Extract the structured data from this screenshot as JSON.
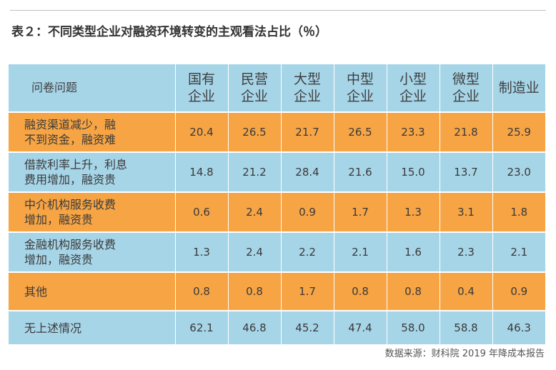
{
  "title": "表２：不同类型企业对融资环境转变的主观看法占比（％）",
  "header": {
    "question_label": "问卷问题",
    "columns": [
      "国有\n企业",
      "民营\n企业",
      "大型\n企业",
      "中型\n企业",
      "小型\n企业",
      "微型\n企业",
      "制造业"
    ]
  },
  "rows": [
    {
      "label": "融资渠道减少，融\n不到资金，融资难",
      "values": [
        "20.4",
        "26.5",
        "21.7",
        "26.5",
        "23.3",
        "21.8",
        "25.9"
      ],
      "color": "#f6a444"
    },
    {
      "label": "借款利率上升，利息\n费用增加，融资贵",
      "values": [
        "14.8",
        "21.2",
        "28.4",
        "21.6",
        "15.0",
        "13.7",
        "23.0"
      ],
      "color": "#a7d5e8"
    },
    {
      "label": "中介机构服务收费\n增加，融资贵",
      "values": [
        "0.6",
        "2.4",
        "0.9",
        "1.7",
        "1.3",
        "3.1",
        "1.8"
      ],
      "color": "#f6a444"
    },
    {
      "label": "金融机构服务收费\n增加，融资贵",
      "values": [
        "1.3",
        "2.4",
        "2.2",
        "2.1",
        "1.6",
        "2.3",
        "2.1"
      ],
      "color": "#a7d5e8"
    },
    {
      "label": "其他",
      "values": [
        "0.8",
        "0.8",
        "1.7",
        "0.8",
        "0.8",
        "0.4",
        "0.9"
      ],
      "color": "#f6a444"
    },
    {
      "label": "无上述情况",
      "values": [
        "62.1",
        "46.8",
        "45.2",
        "47.4",
        "58.0",
        "58.8",
        "46.3"
      ],
      "color": "#a7d5e8"
    }
  ],
  "source": "数据来源：财科院 2019 年降成本报告"
}
